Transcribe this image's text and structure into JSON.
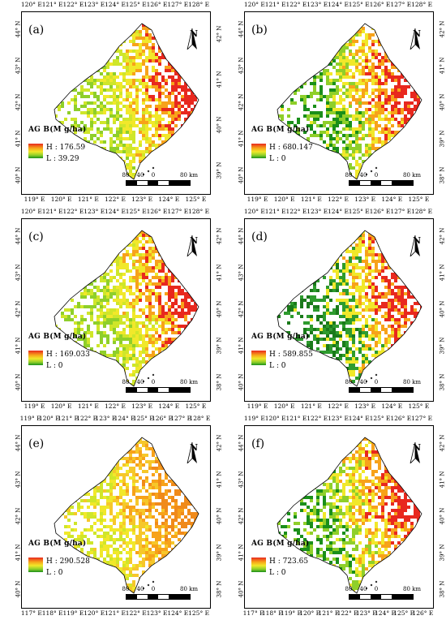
{
  "legend_title": "AG B(M g/ha)",
  "north_label": "N",
  "scale": {
    "labels": [
      "80",
      "40",
      "0",
      "80 km"
    ]
  },
  "panels": [
    {
      "label": "(a)",
      "hi": "H : 176.59",
      "lo": "L : 39.29",
      "top_ticks": [
        "120° E",
        "121° E",
        "122° E",
        "123° E",
        "124° E",
        "125° E",
        "126° E",
        "127° E",
        "128° E"
      ],
      "bottom_ticks": [
        "119° E",
        "120° E",
        "121° E",
        "122° E",
        "123° E",
        "124° E",
        "125° E"
      ],
      "left_ticks": [
        "44° N",
        "43° N",
        "42° N",
        "41° N",
        "40° N"
      ],
      "right_ticks": [
        "42° N",
        "41° N",
        "40° N",
        "39° N"
      ]
    },
    {
      "label": "(b)",
      "hi": "H : 680.147",
      "lo": "L : 0",
      "top_ticks": [
        "120° E",
        "121° E",
        "122° E",
        "123° E",
        "124° E",
        "125° E",
        "126° E",
        "127° E",
        "128° E"
      ],
      "bottom_ticks": [
        "119° E",
        "120° E",
        "121° E",
        "122° E",
        "123° E",
        "124° E",
        "125° E"
      ],
      "left_ticks": [
        "44° N",
        "43° N",
        "42° N",
        "41° N",
        "40° N"
      ],
      "right_ticks": [
        "42° N",
        "41° N",
        "40° N",
        "39° N",
        "38° N"
      ]
    },
    {
      "label": "(c)",
      "hi": "H : 169.033",
      "lo": "L : 0",
      "top_ticks": [
        "120° E",
        "121° E",
        "122° E",
        "123° E",
        "124° E",
        "125° E",
        "126° E",
        "127° E",
        "128° E"
      ],
      "bottom_ticks": [
        "119° E",
        "120° E",
        "121° E",
        "122° E",
        "123° E",
        "124° E",
        "125° E"
      ],
      "left_ticks": [
        "44° N",
        "43° N",
        "42° N",
        "41° N",
        "40° N"
      ],
      "right_ticks": [
        "42° N",
        "41° N",
        "40° N",
        "39° N",
        "38° N"
      ]
    },
    {
      "label": "(d)",
      "hi": "H : 589.855",
      "lo": "L : 0",
      "top_ticks": [
        "120° E",
        "121° E",
        "122° E",
        "123° E",
        "124° E",
        "125° E",
        "126° E",
        "127° E",
        "128° E"
      ],
      "bottom_ticks": [
        "119° E",
        "120° E",
        "121° E",
        "122° E",
        "123° E",
        "124° E",
        "125° E"
      ],
      "left_ticks": [
        "44° N",
        "43° N",
        "42° N",
        "41° N",
        "40° N"
      ],
      "right_ticks": [
        "42° N",
        "41° N",
        "40° N",
        "39° N",
        "38° N"
      ]
    },
    {
      "label": "(e)",
      "hi": "H : 290.528",
      "lo": "L : 0",
      "top_ticks": [
        "119° E",
        "120° E",
        "121° E",
        "122° E",
        "123° E",
        "124° E",
        "125° E",
        "126° E",
        "127° E",
        "128° E"
      ],
      "bottom_ticks": [
        "117° E",
        "118° E",
        "119° E",
        "120° E",
        "121° E",
        "122° E",
        "123° E",
        "124° E",
        "125° E"
      ],
      "left_ticks": [
        "44° N",
        "43° N",
        "42° N",
        "41° N",
        "40° N"
      ],
      "right_ticks": [
        "42° N",
        "41° N",
        "40° N",
        "39° N",
        "38° N"
      ]
    },
    {
      "label": "(f)",
      "hi": "H : 723.65",
      "lo": "L : 0",
      "top_ticks": [
        "119° E",
        "120° E",
        "121° E",
        "122° E",
        "123° E",
        "124° E",
        "125° E",
        "126° E",
        "127° E"
      ],
      "bottom_ticks": [
        "117° E",
        "118° E",
        "119° E",
        "120° E",
        "121° E",
        "122° E",
        "123° E",
        "124° E",
        "125° E",
        "126° E"
      ],
      "left_ticks": [
        "44° N",
        "43° N",
        "42° N",
        "41° N",
        "40° N"
      ],
      "right_ticks": [
        "42° N",
        "41° N",
        "40° N",
        "39° N",
        "38° N"
      ]
    }
  ],
  "colors": {
    "high": "#e8281e",
    "orange": "#f7a21a",
    "yellow": "#f1e82a",
    "lightgreen": "#8fcf2a",
    "green": "#1a8f1a"
  }
}
